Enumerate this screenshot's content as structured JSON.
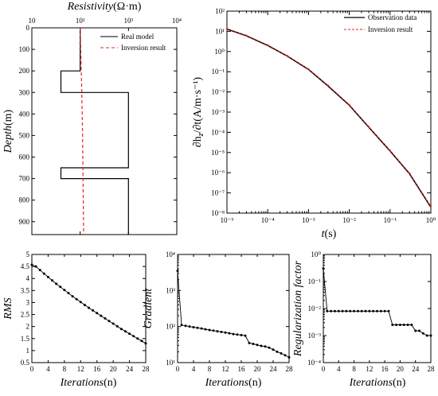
{
  "chart_data": [
    {
      "type": "line",
      "panel": "resistivity-depth",
      "xlabel_italic": "Resistivity",
      "xlabel_unit": "(Ω·m)",
      "ylabel_italic": "Depth",
      "ylabel_unit": "(m)",
      "xscale": "log",
      "xlim": [
        10,
        10000
      ],
      "ylim": [
        0,
        960
      ],
      "y_inverted": true,
      "x_axis_position": "top",
      "xticks": [
        10,
        100,
        1000,
        10000
      ],
      "xtick_labels": [
        "10",
        "10²",
        "10³",
        "10⁴"
      ],
      "yticks": [
        0,
        100,
        200,
        300,
        400,
        500,
        600,
        700,
        800,
        900
      ],
      "legend_position": "top-right",
      "series": [
        {
          "name": "Real model",
          "style": "solid",
          "color": "#000000",
          "points": [
            [
              100,
              0
            ],
            [
              100,
              200
            ],
            [
              40,
              200
            ],
            [
              40,
              300
            ],
            [
              1000,
              300
            ],
            [
              1000,
              650
            ],
            [
              40,
              650
            ],
            [
              40,
              700
            ],
            [
              1000,
              700
            ],
            [
              1000,
              960
            ]
          ]
        },
        {
          "name": "Inversion result",
          "style": "dashed",
          "color": "#e8231e",
          "points": [
            [
              100,
              0
            ],
            [
              108,
              300
            ],
            [
              112,
              500
            ],
            [
              115,
              700
            ],
            [
              118,
              960
            ]
          ]
        }
      ]
    },
    {
      "type": "line",
      "panel": "decay-curve",
      "xlabel_italic": "t",
      "xlabel_unit": "(s)",
      "ylabel_text": "∂h",
      "ylabel_sub": "z",
      "ylabel_tail": "/∂t(A/m·s⁻¹)",
      "xscale": "log",
      "yscale": "log",
      "xlim": [
        1e-05,
        1
      ],
      "ylim": [
        1e-08,
        100
      ],
      "xticks": [
        1e-05,
        0.0001,
        0.001,
        0.01,
        0.1,
        1
      ],
      "xtick_labels": [
        "10⁻⁵",
        "10⁻⁴",
        "10⁻³",
        "10⁻²",
        "10⁻¹",
        "10⁰"
      ],
      "yticks": [
        1e-08,
        1e-07,
        1e-06,
        1e-05,
        0.0001,
        0.001,
        0.01,
        0.1,
        1,
        10,
        100
      ],
      "ytick_labels": [
        "10⁻⁸",
        "10⁻⁷",
        "10⁻⁶",
        "10⁻⁵",
        "10⁻⁴",
        "10⁻³",
        "10⁻²",
        "10⁻¹",
        "10⁰",
        "10¹",
        "10²"
      ],
      "legend_position": "top-right",
      "series": [
        {
          "name": "Observation data",
          "style": "solid",
          "color": "#000000",
          "x": [
            1e-05,
            3e-05,
            0.0001,
            0.0003,
            0.001,
            0.003,
            0.01,
            0.03,
            0.1,
            0.3,
            1
          ],
          "y": [
            13,
            6,
            2,
            0.6,
            0.13,
            0.02,
            0.0022,
            0.00018,
            1.2e-05,
            9e-07,
            2e-08
          ]
        },
        {
          "name": "Inversion result",
          "style": "dashed-markers",
          "color": "#e8231e",
          "x": [
            1e-05,
            3e-05,
            0.0001,
            0.0003,
            0.001,
            0.003,
            0.01,
            0.03,
            0.1,
            0.3,
            1
          ],
          "y": [
            13.5,
            6.2,
            2.1,
            0.62,
            0.135,
            0.021,
            0.0023,
            0.00019,
            1.25e-05,
            9.5e-07,
            2.1e-08
          ]
        }
      ]
    },
    {
      "type": "line",
      "panel": "rms",
      "ylabel_italic": "RMS",
      "xlabel_italic": "Iterations",
      "xlabel_unit": "(n)",
      "xlim": [
        0,
        28
      ],
      "ylim": [
        0.5,
        5
      ],
      "xticks": [
        0,
        4,
        8,
        12,
        16,
        20,
        24,
        28
      ],
      "yticks": [
        0.5,
        1,
        1.5,
        2,
        2.5,
        3,
        3.5,
        4,
        4.5,
        5
      ],
      "ytick_labels": [
        "0.5",
        "1",
        "1.5",
        "2",
        "2.5",
        "3",
        "3.5",
        "4",
        "4.5",
        "5"
      ],
      "series": [
        {
          "name": "RMS",
          "color": "#000000",
          "x": [
            0,
            1,
            2,
            3,
            4,
            5,
            6,
            7,
            8,
            9,
            10,
            11,
            12,
            13,
            14,
            15,
            16,
            17,
            18,
            19,
            20,
            21,
            22,
            23,
            24,
            25,
            26,
            27,
            28
          ],
          "y": [
            4.57,
            4.5,
            4.35,
            4.2,
            4.06,
            3.92,
            3.78,
            3.65,
            3.52,
            3.39,
            3.26,
            3.14,
            3.02,
            2.9,
            2.78,
            2.67,
            2.56,
            2.45,
            2.34,
            2.23,
            2.12,
            2.01,
            1.9,
            1.8,
            1.7,
            1.6,
            1.5,
            1.4,
            1.3
          ]
        }
      ]
    },
    {
      "type": "line",
      "panel": "gradient",
      "ylabel_italic": "Gradient",
      "xlabel_italic": "Iterations",
      "xlabel_unit": "(n)",
      "yscale": "log",
      "xlim": [
        0,
        28
      ],
      "ylim": [
        10,
        10000
      ],
      "xticks": [
        0,
        4,
        8,
        12,
        16,
        20,
        24,
        28
      ],
      "yticks": [
        10,
        100,
        1000,
        10000
      ],
      "ytick_labels": [
        "10¹",
        "10²",
        "10³",
        "10⁴"
      ],
      "series": [
        {
          "name": "Gradient",
          "color": "#000000",
          "x": [
            0,
            1,
            2,
            3,
            4,
            5,
            6,
            7,
            8,
            9,
            10,
            11,
            12,
            13,
            14,
            15,
            16,
            17,
            18,
            19,
            20,
            21,
            22,
            23,
            24,
            25,
            26,
            27,
            28
          ],
          "y": [
            3500,
            110,
            105,
            100,
            96,
            92,
            88,
            84,
            80,
            77,
            74,
            71,
            68,
            65,
            62,
            60,
            58,
            56,
            35,
            33,
            31,
            29,
            28,
            26,
            23,
            20,
            18,
            16,
            14
          ]
        }
      ]
    },
    {
      "type": "line",
      "panel": "regularization-factor",
      "ylabel_italic": "Regularization factor",
      "xlabel_italic": "Iterations",
      "xlabel_unit": "(n)",
      "yscale": "log",
      "xlim": [
        0,
        28
      ],
      "ylim": [
        0.0001,
        1
      ],
      "xticks": [
        0,
        4,
        8,
        12,
        16,
        20,
        24,
        28
      ],
      "yticks": [
        0.0001,
        0.001,
        0.01,
        0.1,
        1
      ],
      "ytick_labels": [
        "10⁻⁴",
        "10⁻³",
        "10⁻²",
        "10⁻¹",
        "10⁰"
      ],
      "series": [
        {
          "name": "Regularization factor",
          "color": "#000000",
          "x": [
            0,
            1,
            2,
            3,
            4,
            5,
            6,
            7,
            8,
            9,
            10,
            11,
            12,
            13,
            14,
            15,
            16,
            17,
            18,
            19,
            20,
            21,
            22,
            23,
            24,
            25,
            26,
            27,
            28
          ],
          "y": [
            0.3,
            0.008,
            0.008,
            0.008,
            0.008,
            0.008,
            0.008,
            0.008,
            0.008,
            0.008,
            0.008,
            0.008,
            0.008,
            0.008,
            0.008,
            0.008,
            0.008,
            0.008,
            0.0025,
            0.0025,
            0.0025,
            0.0025,
            0.0025,
            0.0025,
            0.0015,
            0.0015,
            0.0012,
            0.001,
            0.001
          ]
        }
      ]
    }
  ]
}
